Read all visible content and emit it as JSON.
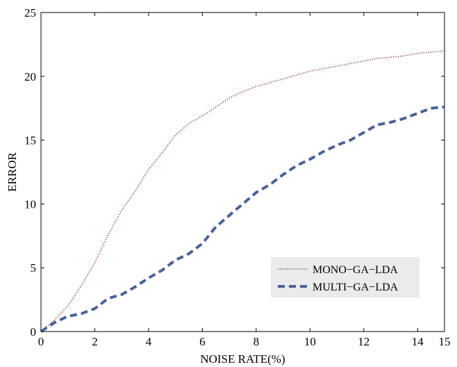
{
  "chart_data": {
    "type": "line",
    "title": "",
    "xlabel": "NOISE RATE(%)",
    "ylabel": "ERROR",
    "xlim": [
      0,
      15
    ],
    "ylim": [
      0,
      25
    ],
    "xticks": [
      0,
      2,
      4,
      6,
      8,
      10,
      12,
      14,
      15
    ],
    "yticks": [
      0,
      5,
      10,
      15,
      20,
      25
    ],
    "grid": false,
    "legend_position": "bottom-right",
    "series": [
      {
        "name": "MONO−GA−LDA",
        "style": "dotted",
        "color": "#8b4a52",
        "x": [
          0,
          0.5,
          1,
          1.5,
          2,
          2.5,
          3,
          3.5,
          4,
          4.5,
          5,
          5.5,
          6,
          6.5,
          7,
          7.5,
          8,
          8.5,
          9,
          9.5,
          10,
          10.5,
          11,
          11.5,
          12,
          12.5,
          13,
          13.5,
          14,
          14.5,
          15
        ],
        "values": [
          0,
          0.9,
          2.0,
          3.6,
          5.4,
          7.6,
          9.5,
          11.0,
          12.7,
          14.0,
          15.4,
          16.3,
          16.9,
          17.6,
          18.3,
          18.8,
          19.2,
          19.5,
          19.8,
          20.1,
          20.4,
          20.6,
          20.8,
          21.0,
          21.2,
          21.4,
          21.5,
          21.6,
          21.8,
          21.9,
          22.0
        ]
      },
      {
        "name": "MULTI−GA−LDA",
        "style": "dashed",
        "color": "#4c6196",
        "x": [
          0,
          0.5,
          1,
          1.5,
          2,
          2.5,
          3,
          3.5,
          4,
          4.5,
          5,
          5.5,
          6,
          6.5,
          7,
          7.5,
          8,
          8.5,
          9,
          9.5,
          10,
          10.5,
          11,
          11.5,
          12,
          12.5,
          13,
          13.5,
          14,
          14.5,
          15
        ],
        "values": [
          0,
          0.7,
          1.2,
          1.4,
          1.8,
          2.6,
          2.9,
          3.5,
          4.2,
          4.8,
          5.6,
          6.1,
          6.9,
          8.2,
          9.1,
          10.0,
          10.9,
          11.5,
          12.3,
          13.0,
          13.5,
          14.1,
          14.6,
          15.0,
          15.6,
          16.2,
          16.4,
          16.7,
          17.1,
          17.5,
          17.6
        ]
      }
    ]
  }
}
